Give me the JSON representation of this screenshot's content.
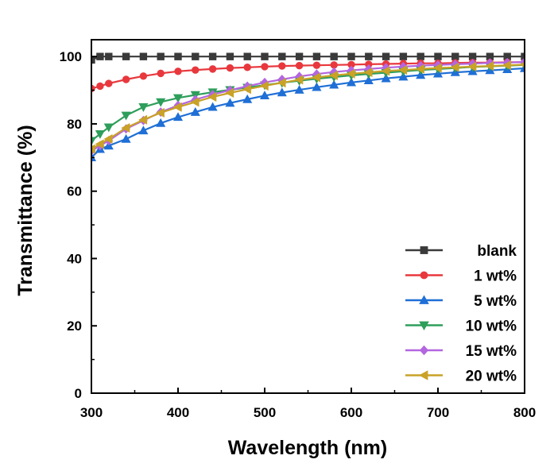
{
  "chart_data": {
    "type": "line",
    "xlabel": "Wavelength (nm)",
    "ylabel": "Transmittance (%)",
    "xlim": [
      300,
      800
    ],
    "ylim": [
      0,
      105
    ],
    "xticks": [
      300,
      400,
      500,
      600,
      700,
      800
    ],
    "yticks": [
      0,
      20,
      40,
      60,
      80,
      100
    ],
    "grid": false,
    "legend_position": "bottom-right",
    "x": [
      300,
      310,
      320,
      340,
      360,
      380,
      400,
      420,
      440,
      460,
      480,
      500,
      520,
      540,
      560,
      580,
      600,
      620,
      640,
      660,
      680,
      700,
      720,
      740,
      760,
      780,
      800
    ],
    "series": [
      {
        "name": "blank",
        "color": "#3a3a3a",
        "marker": "square",
        "values": [
          99.0,
          100.0,
          100.0,
          100.0,
          100.0,
          100.0,
          100.0,
          100.0,
          100.0,
          100.0,
          100.0,
          100.0,
          100.0,
          100.0,
          100.0,
          100.0,
          100.0,
          100.0,
          100.0,
          100.0,
          100.0,
          100.0,
          100.0,
          100.0,
          100.0,
          100.0,
          100.0
        ]
      },
      {
        "name": "1 wt%",
        "color": "#e8383d",
        "marker": "circle",
        "values": [
          90.5,
          91.2,
          92.0,
          93.2,
          94.2,
          95.0,
          95.6,
          96.0,
          96.3,
          96.6,
          96.8,
          97.0,
          97.2,
          97.3,
          97.4,
          97.5,
          97.6,
          97.7,
          97.8,
          97.9,
          98.0,
          98.0,
          98.1,
          98.2,
          98.2,
          98.3,
          98.3
        ]
      },
      {
        "name": "5 wt%",
        "color": "#1f6fd6",
        "marker": "triangle-up",
        "values": [
          70.0,
          72.5,
          73.5,
          75.5,
          78.0,
          80.2,
          82.0,
          83.5,
          85.0,
          86.2,
          87.3,
          88.4,
          89.3,
          90.1,
          90.9,
          91.6,
          92.3,
          92.9,
          93.5,
          94.0,
          94.5,
          94.9,
          95.3,
          95.6,
          95.9,
          96.2,
          96.5
        ]
      },
      {
        "name": "10 wt%",
        "color": "#2e9e5b",
        "marker": "triangle-down",
        "values": [
          75.0,
          77.0,
          79.0,
          82.5,
          85.0,
          86.5,
          87.7,
          88.6,
          89.4,
          90.1,
          90.8,
          91.5,
          92.2,
          92.8,
          93.4,
          93.9,
          94.4,
          94.8,
          95.2,
          95.6,
          96.0,
          96.3,
          96.6,
          96.9,
          97.1,
          97.3,
          97.5
        ]
      },
      {
        "name": "15 wt%",
        "color": "#b366e0",
        "marker": "diamond",
        "values": [
          72.0,
          73.5,
          75.0,
          78.5,
          81.0,
          83.5,
          85.5,
          87.2,
          88.7,
          90.0,
          91.2,
          92.3,
          93.2,
          94.1,
          94.8,
          95.4,
          95.9,
          96.3,
          96.7,
          97.0,
          97.3,
          97.5,
          97.7,
          97.9,
          98.1,
          98.2,
          98.4
        ]
      },
      {
        "name": "20 wt%",
        "color": "#c9a227",
        "marker": "triangle-left",
        "values": [
          72.5,
          74.0,
          75.5,
          78.8,
          81.2,
          83.3,
          85.0,
          86.5,
          88.0,
          89.2,
          90.3,
          91.3,
          92.2,
          93.1,
          93.8,
          94.4,
          94.9,
          95.3,
          95.7,
          96.0,
          96.3,
          96.6,
          96.8,
          97.0,
          97.2,
          97.4,
          97.6
        ]
      }
    ]
  }
}
